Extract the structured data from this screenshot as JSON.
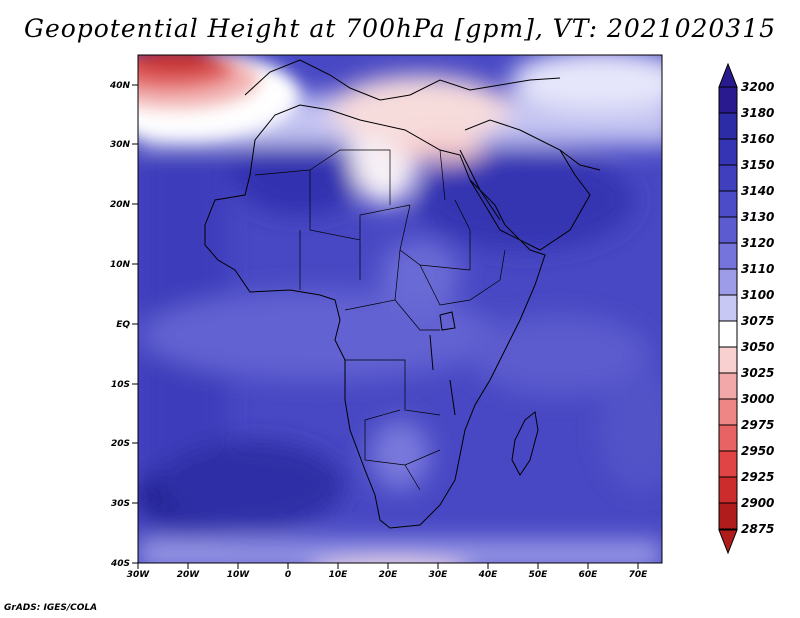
{
  "title": "Geopotential Height at 700hPa [gpm], VT: 2021020315",
  "credit": "GrADS: IGES/COLA",
  "map": {
    "lat_ticks": [
      "40N",
      "30N",
      "20N",
      "10N",
      "EQ",
      "10S",
      "20S",
      "30S",
      "40S"
    ],
    "lon_ticks": [
      "30W",
      "20W",
      "10W",
      "0",
      "10E",
      "20E",
      "30E",
      "40E",
      "50E",
      "60E",
      "70E"
    ]
  },
  "colorbar": {
    "levels": [
      "3200",
      "3180",
      "3160",
      "3150",
      "3140",
      "3130",
      "3120",
      "3110",
      "3100",
      "3075",
      "3050",
      "3025",
      "3000",
      "2975",
      "2950",
      "2925",
      "2900",
      "2875"
    ],
    "colors": [
      "#2a1a90",
      "#2c2ca6",
      "#3434b4",
      "#4040be",
      "#4c4cc8",
      "#5c5cd0",
      "#7474dc",
      "#9c9ce8",
      "#c8c8f4",
      "#ffffff",
      "#f8d0d0",
      "#f2a8a8",
      "#ee8686",
      "#e86464",
      "#e04444",
      "#cc2c2c",
      "#b01c1c"
    ],
    "arrow_top_color": "#2a1a90",
    "arrow_bottom_color": "#b01c1c"
  }
}
